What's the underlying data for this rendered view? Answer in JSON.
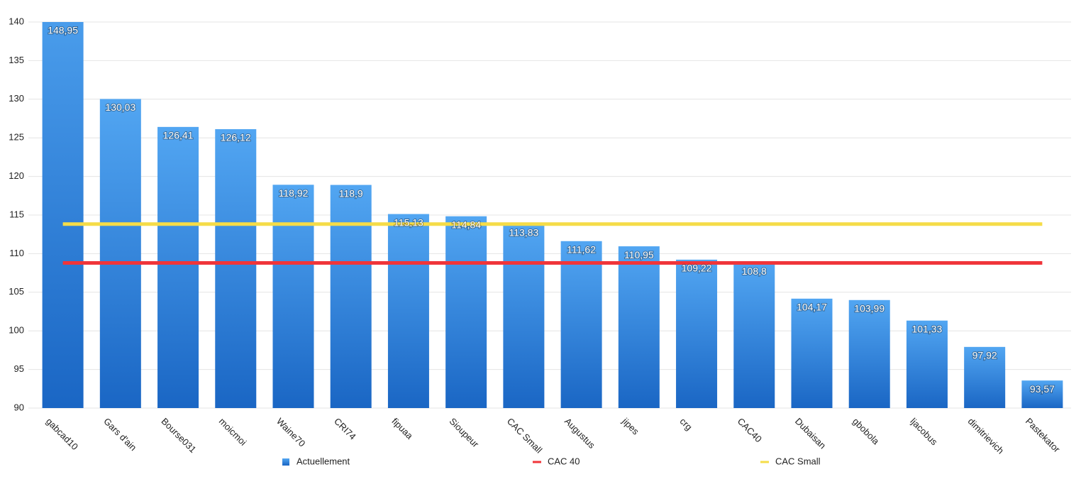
{
  "chart_data": {
    "type": "bar",
    "categories": [
      "gabcad10",
      "Gars d'ain",
      "Bourse031",
      "moicmoi",
      "Waine70",
      "CRI74",
      "fipuaa",
      "Sioupeur",
      "CAC Small",
      "Augustus",
      "jipes",
      "crg",
      "CAC40",
      "Dubaisan",
      "gbobola",
      "ljacobus",
      "dimitrievich",
      "Pastekator"
    ],
    "series": [
      {
        "name": "Actuellement",
        "type": "bar",
        "color": "#3a8ee2",
        "values": [
          148.95,
          130.03,
          126.41,
          126.12,
          118.92,
          118.9,
          115.13,
          114.84,
          113.83,
          111.62,
          110.95,
          109.22,
          108.8,
          104.17,
          103.99,
          101.33,
          97.92,
          93.57
        ],
        "value_labels": [
          "148,95",
          "130,03",
          "126,41",
          "126,12",
          "118,92",
          "118,9",
          "115,13",
          "114,84",
          "113,83",
          "111,62",
          "110,95",
          "109,22",
          "108,8",
          "104,17",
          "103,99",
          "101,33",
          "97,92",
          "93,57"
        ]
      },
      {
        "name": "CAC 40",
        "type": "line",
        "color": "#f0353a",
        "values": [
          108.8,
          108.8,
          108.8,
          108.8,
          108.8,
          108.8,
          108.8,
          108.8,
          108.8,
          108.8,
          108.8,
          108.8,
          108.8,
          108.8,
          108.8,
          108.8,
          108.8,
          108.8
        ]
      },
      {
        "name": "CAC Small",
        "type": "line",
        "color": "#f5dc48",
        "values": [
          113.83,
          113.83,
          113.83,
          113.83,
          113.83,
          113.83,
          113.83,
          113.83,
          113.83,
          113.83,
          113.83,
          113.83,
          113.83,
          113.83,
          113.83,
          113.83,
          113.83,
          113.83
        ]
      }
    ],
    "ylim": [
      90,
      140
    ],
    "yticks": [
      90,
      95,
      100,
      105,
      110,
      115,
      120,
      125,
      130,
      135,
      140
    ],
    "grid": true
  }
}
